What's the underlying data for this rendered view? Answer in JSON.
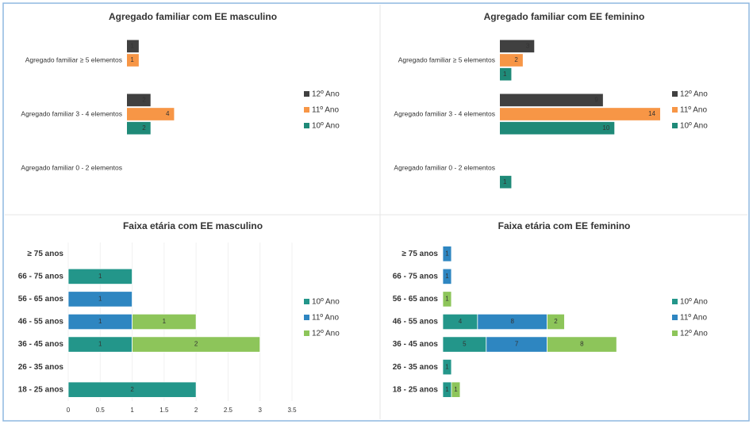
{
  "chart_data": [
    {
      "type": "bar",
      "title": "Agregado familiar com EE masculino",
      "categories": [
        "Agregado familiar ≥ 5 elementos",
        "Agregado familiar 3 - 4 elementos",
        "Agregado familiar 0 - 2 elementos"
      ],
      "series": [
        {
          "name": "12º Ano",
          "color": "#404040",
          "values": [
            1,
            2,
            0
          ]
        },
        {
          "name": "11º Ano",
          "color": "#f79646",
          "values": [
            1,
            4,
            0
          ]
        },
        {
          "name": "10º Ano",
          "color": "#1f8a78",
          "values": [
            0,
            2,
            0
          ]
        }
      ],
      "xlim": [
        0,
        14
      ]
    },
    {
      "type": "bar",
      "title": "Agregado familiar com EE feminino",
      "categories": [
        "Agregado familiar ≥ 5 elementos",
        "Agregado familiar 3 - 4 elementos",
        "Agregado familiar 0 - 2 elementos"
      ],
      "series": [
        {
          "name": "12º Ano",
          "color": "#404040",
          "values": [
            3,
            9,
            0
          ]
        },
        {
          "name": "11º Ano",
          "color": "#f79646",
          "values": [
            2,
            14,
            0
          ]
        },
        {
          "name": "10º Ano",
          "color": "#1f8a78",
          "values": [
            1,
            10,
            1
          ]
        }
      ],
      "xlim": [
        0,
        14
      ]
    },
    {
      "type": "stacked_bar",
      "title": "Faixa etária com EE masculino",
      "categories": [
        "≥ 75 anos",
        "66 - 75 anos",
        "56 - 65 anos",
        "46 - 55 anos",
        "36 - 45 anos",
        "26 - 35 anos",
        "18 - 25 anos"
      ],
      "series": [
        {
          "name": "10º Ano",
          "color": "#23968a",
          "values": [
            0,
            1,
            0,
            0,
            1,
            0,
            2
          ]
        },
        {
          "name": "11º Ano",
          "color": "#2e86c1",
          "values": [
            0,
            0,
            1,
            1,
            0,
            0,
            0
          ]
        },
        {
          "name": "12º Ano",
          "color": "#8dc55a",
          "values": [
            0,
            0,
            0,
            1,
            2,
            0,
            0
          ]
        }
      ],
      "xlim": [
        0,
        3.5
      ],
      "xticks": [
        0,
        0.5,
        1,
        1.5,
        2,
        2.5,
        3,
        3.5
      ]
    },
    {
      "type": "stacked_bar",
      "title": "Faixa etária com EE feminino",
      "categories": [
        "≥ 75 anos",
        "66 - 75 anos",
        "56 - 65 anos",
        "46 - 55 anos",
        "36 - 45 anos",
        "26 - 35 anos",
        "18 - 25 anos"
      ],
      "series": [
        {
          "name": "10º Ano",
          "color": "#23968a",
          "values": [
            0,
            0,
            0,
            4,
            5,
            1,
            1
          ]
        },
        {
          "name": "11º Ano",
          "color": "#2e86c1",
          "values": [
            1,
            1,
            0,
            8,
            7,
            0,
            0
          ]
        },
        {
          "name": "12º Ano",
          "color": "#8dc55a",
          "values": [
            0,
            0,
            1,
            2,
            8,
            0,
            1
          ]
        }
      ],
      "xlim": [
        0,
        25
      ]
    }
  ]
}
